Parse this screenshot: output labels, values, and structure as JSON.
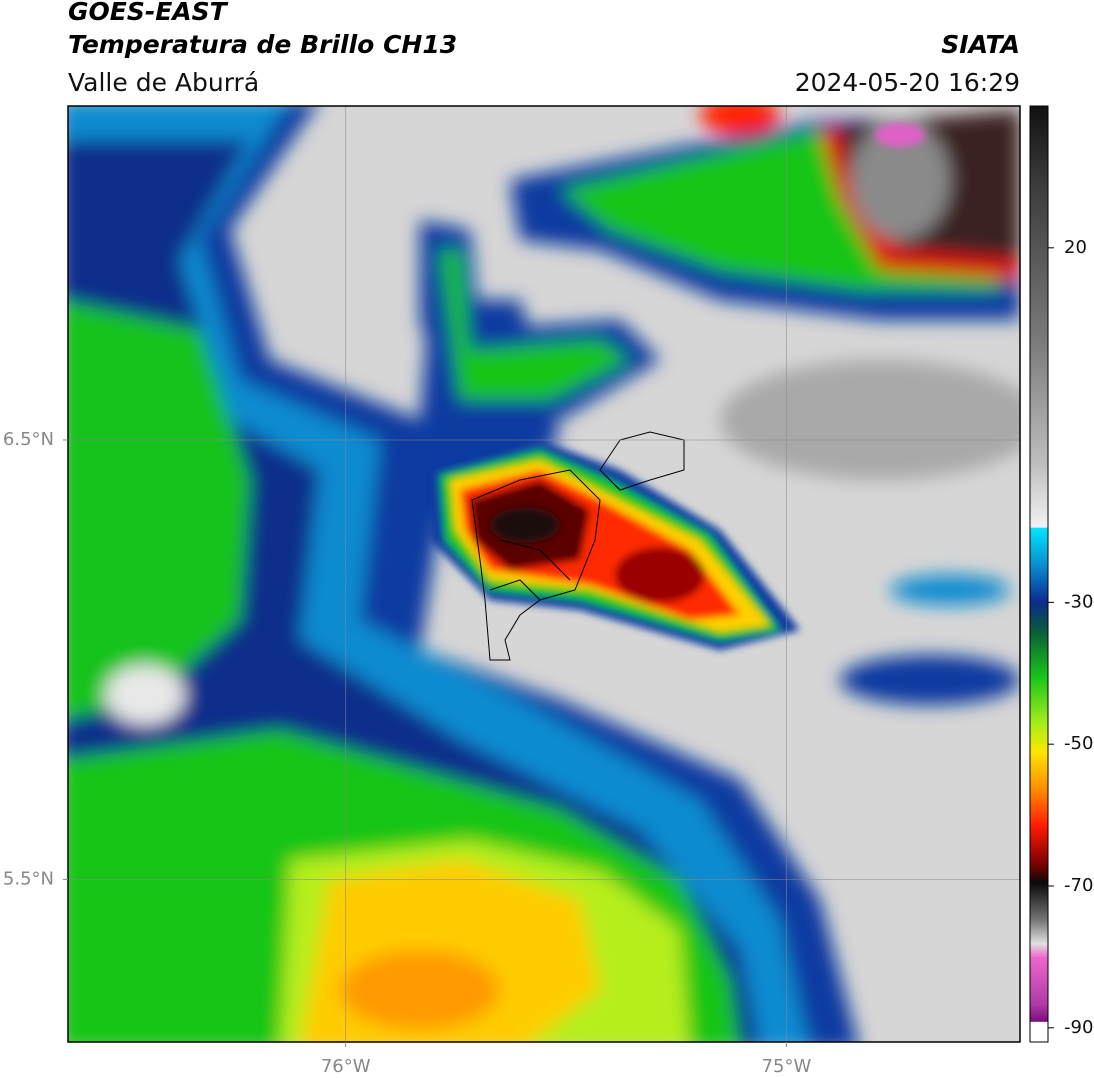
{
  "header": {
    "title": "GOES-EAST",
    "subtitle": "Temperatura de Brillo CH13",
    "region": "Valle de Aburrá",
    "source": "SIATA",
    "datetime": "2024-05-20 16:29"
  },
  "map": {
    "lonlim": [
      -76.63,
      -74.47
    ],
    "latlim": [
      5.13,
      7.26
    ],
    "lonticks": [
      {
        "value": -76,
        "label": "76°W"
      },
      {
        "value": -75,
        "label": "75°W"
      }
    ],
    "latticks": [
      {
        "value": 6.5,
        "label": "6.5°N"
      },
      {
        "value": 5.5,
        "label": "5.5°N"
      }
    ],
    "grid": true
  },
  "colorbar": {
    "lim": [
      -92,
      40
    ],
    "ticks": [
      20,
      -30,
      -50,
      -70,
      -90
    ]
  }
}
